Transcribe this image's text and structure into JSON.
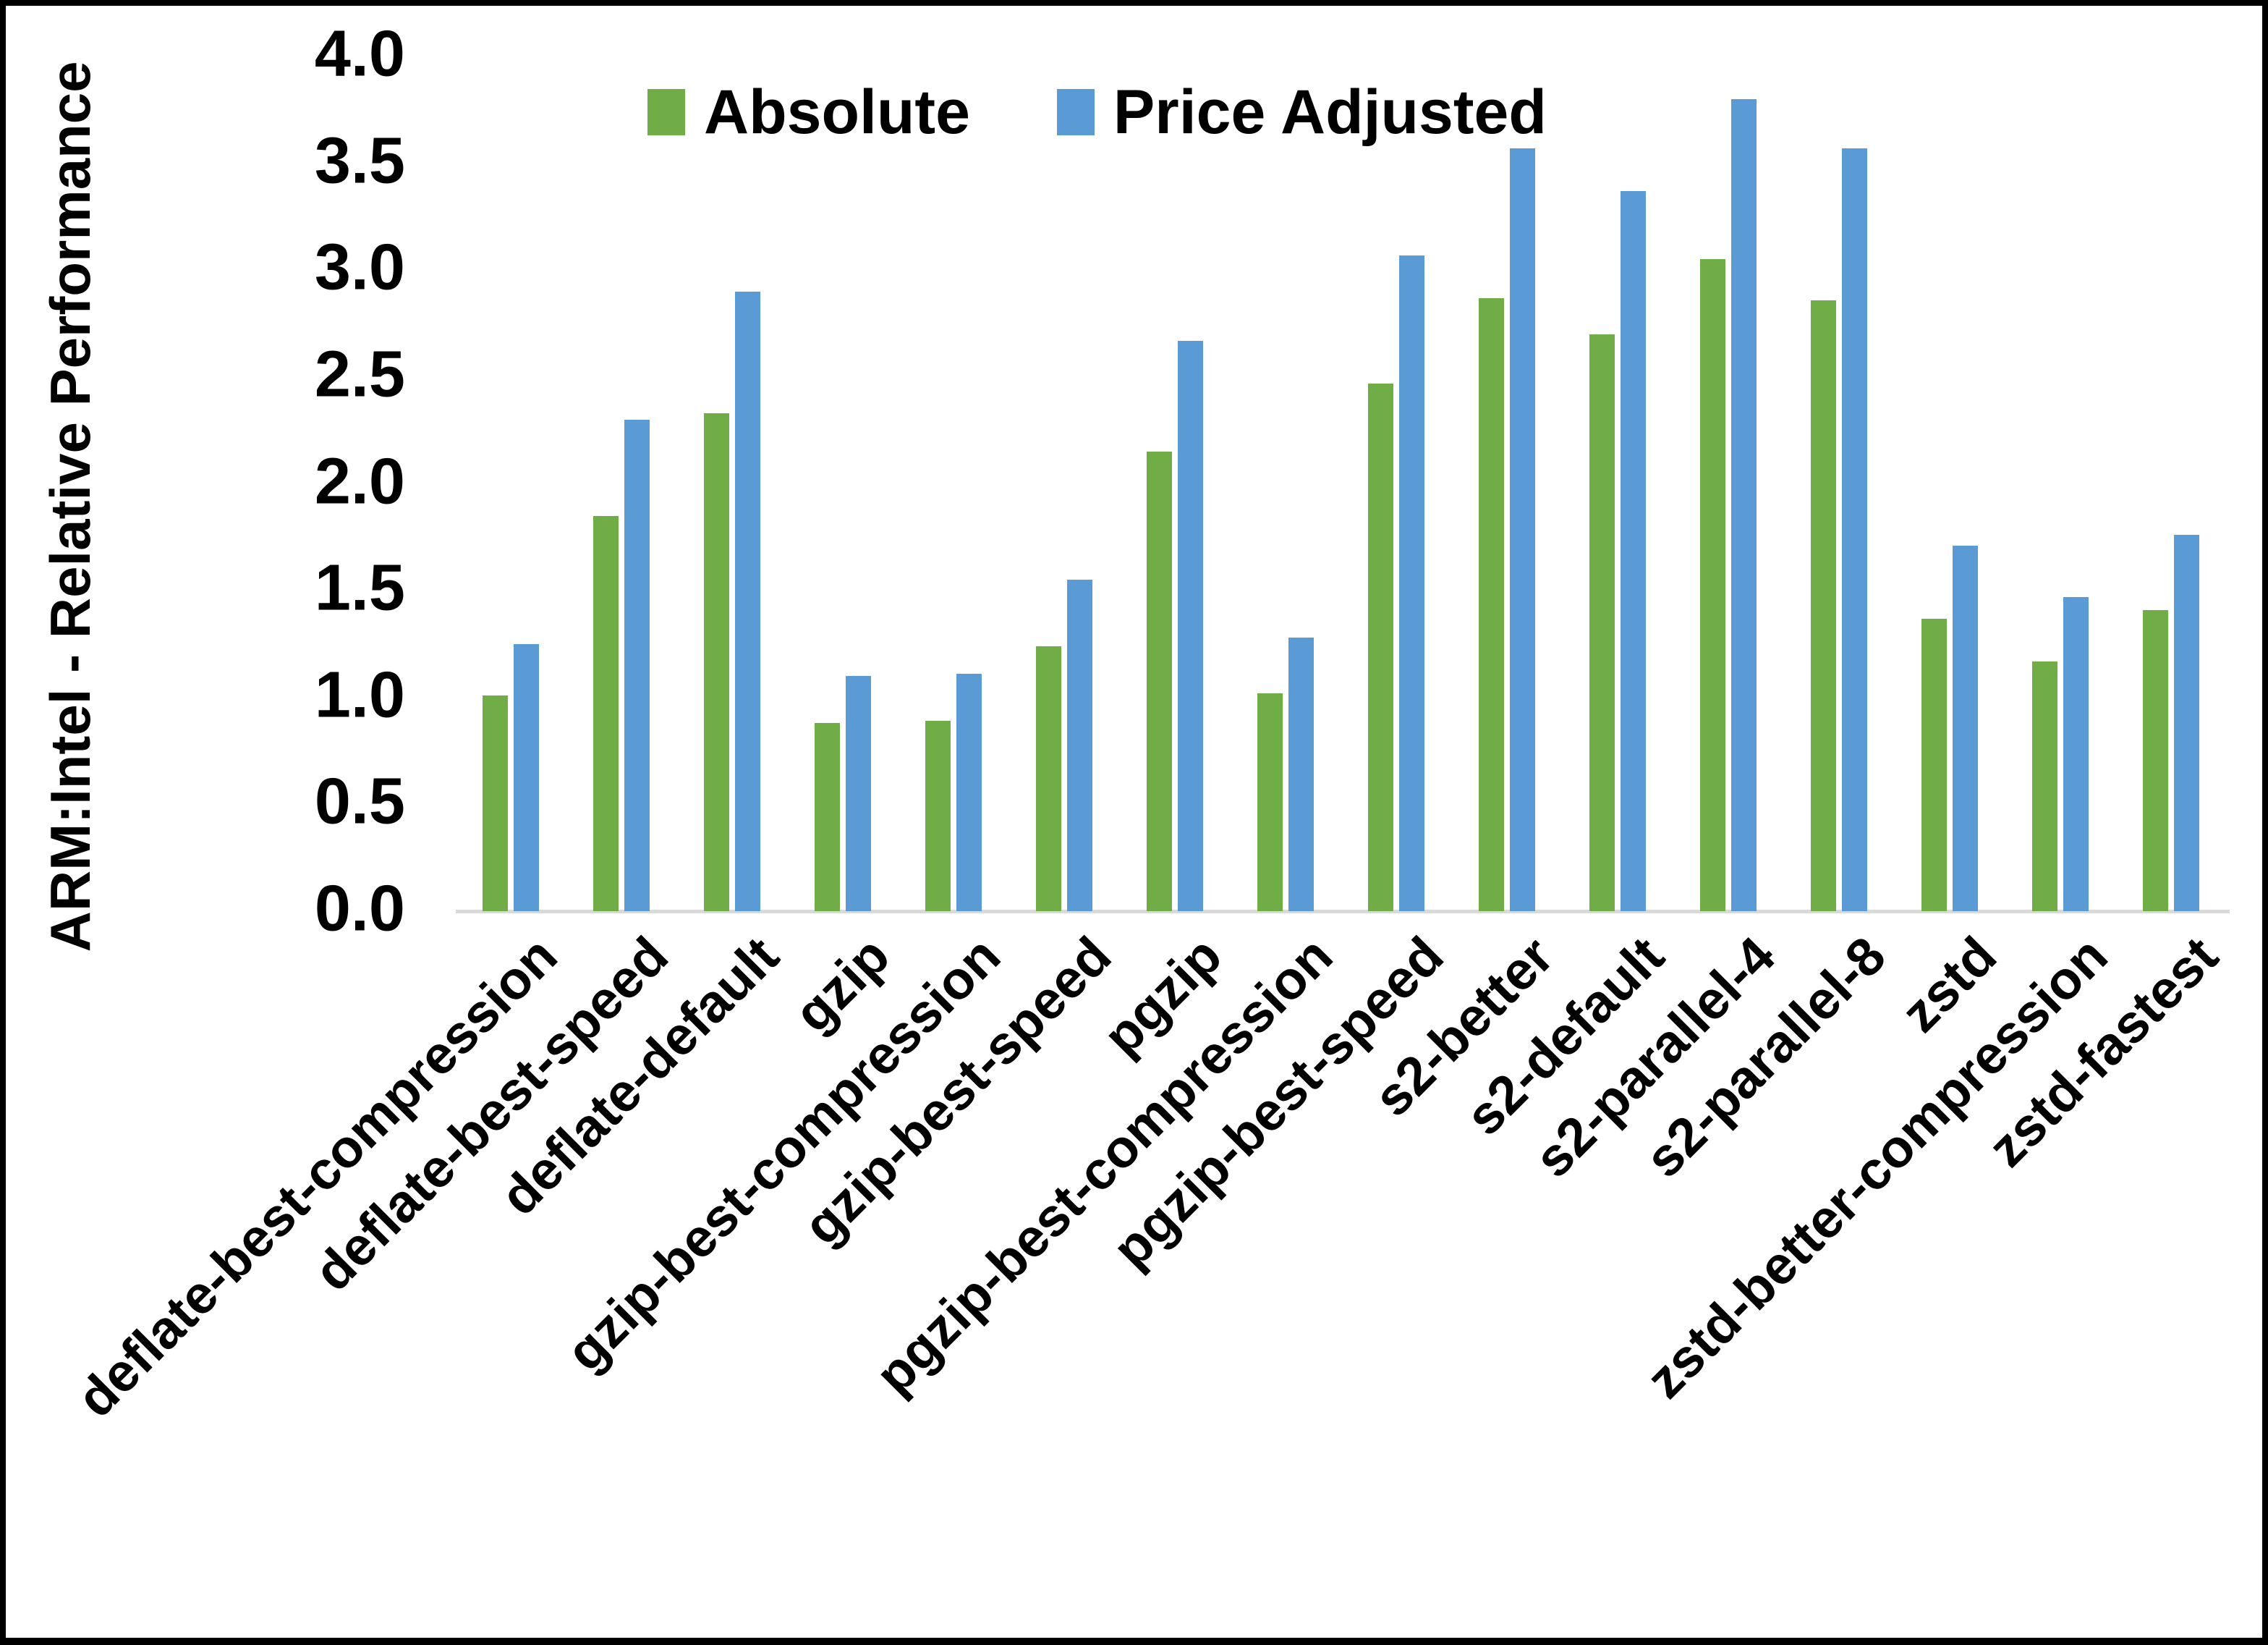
{
  "chart_data": {
    "type": "bar",
    "title": "",
    "xlabel": "",
    "ylabel": "ARM:Intel - Relative Performance",
    "ylim": [
      0.0,
      4.0
    ],
    "ytick_step": 0.5,
    "ytick_format_decimals": 1,
    "grid": false,
    "legend_position": "top-center",
    "categories": [
      "deflate-best-compression",
      "deflate-best-speed",
      "deflate-default",
      "gzip",
      "gzip-best-compression",
      "gzip-best-speed",
      "pgzip",
      "pgzip-best-compression",
      "pgzip-best-speed",
      "s2-better",
      "s2-default",
      "s2-parallel-4",
      "s2-parallel-8",
      "zstd",
      "zstd-better-compression",
      "zstd-fastest"
    ],
    "series": [
      {
        "name": "Absolute",
        "color": "#70AD47",
        "values": [
          1.01,
          1.85,
          2.33,
          0.88,
          0.89,
          1.24,
          2.15,
          1.02,
          2.47,
          2.87,
          2.7,
          3.05,
          2.86,
          1.37,
          1.17,
          1.41
        ]
      },
      {
        "name": "Price Adjusted",
        "color": "#5B9BD5",
        "values": [
          1.25,
          2.3,
          2.9,
          1.1,
          1.11,
          1.55,
          2.67,
          1.28,
          3.07,
          3.57,
          3.37,
          3.8,
          3.57,
          1.71,
          1.47,
          1.76
        ]
      }
    ]
  },
  "axis": {
    "line_color": "#D9D9D9",
    "text_color": "#000000"
  },
  "frame": {
    "border_color": "#000000",
    "background": "#FFFFFF"
  }
}
